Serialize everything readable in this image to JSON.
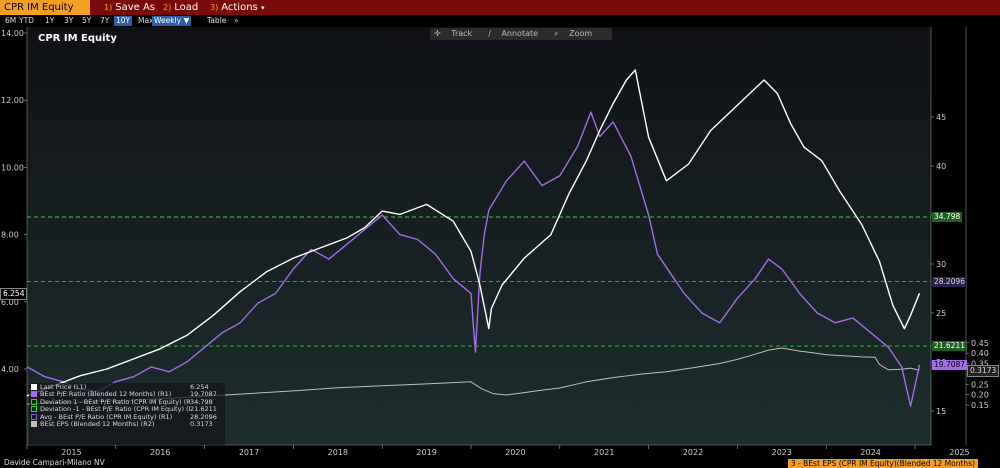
{
  "toolbar": {
    "ticker": "CPR IM Equity",
    "save_as": {
      "num": "1)",
      "label": "Save As"
    },
    "load": {
      "num": "2)",
      "label": "Load"
    },
    "actions": {
      "num": "3)",
      "label": "Actions"
    }
  },
  "ranges": [
    "6M",
    "YTD",
    "1Y",
    "3Y",
    "5Y",
    "7Y",
    "10Y",
    "Max"
  ],
  "active_range": "10Y",
  "frequency": "Weekly",
  "table_label": "Table",
  "more_label": "»",
  "chart_tools": {
    "track": "Track",
    "annotate": "Annotate",
    "zoom": "Zoom"
  },
  "footer": {
    "company": "Davide Campari-Milano NV",
    "right_label": "3 - BEst EPS (CPR IM Equity)(Blended 12 Months)"
  },
  "colors": {
    "price": "#ffffff",
    "pe": "#a46bea",
    "eps": "#bfbfbf",
    "dev": "#2fd62f",
    "avg": "#8a5bd6",
    "accent": "#f3a022",
    "header": "#7a0a0a"
  },
  "chart_data": {
    "type": "line",
    "title": "CPR IM Equity",
    "x_ticks": [
      "2015",
      "2016",
      "2017",
      "2018",
      "2019",
      "2020",
      "2021",
      "2022",
      "2023",
      "2024",
      "2025"
    ],
    "axes": {
      "left": {
        "range": [
          3,
          14
        ],
        "ticks": [
          "4.00",
          "6.00",
          "8.00",
          "10.00",
          "12.00",
          "14.00"
        ]
      },
      "r1": {
        "range": [
          13,
          47
        ],
        "ticks": [
          "15",
          "20",
          "25",
          "30",
          "35",
          "40",
          "45"
        ]
      },
      "r2": {
        "range": [
          0.125,
          0.45
        ],
        "ticks": [
          "0.15",
          "0.20",
          "0.25",
          "0.30",
          "0.35",
          "0.40",
          "0.45"
        ]
      }
    },
    "series": [
      {
        "name": "Last Price (L1)",
        "value": "6.254",
        "axis": "left",
        "x": [
          2015.0,
          2015.3,
          2015.6,
          2015.9,
          2016.2,
          2016.5,
          2016.8,
          2017.1,
          2017.4,
          2017.7,
          2018.0,
          2018.3,
          2018.6,
          2018.8,
          2019.0,
          2019.2,
          2019.5,
          2019.8,
          2020.0,
          2020.1,
          2020.2,
          2020.23,
          2020.35,
          2020.6,
          2020.9,
          2021.1,
          2021.3,
          2021.45,
          2021.6,
          2021.75,
          2021.85,
          2022.0,
          2022.2,
          2022.45,
          2022.7,
          2022.9,
          2023.1,
          2023.3,
          2023.45,
          2023.6,
          2023.75,
          2023.95,
          2024.15,
          2024.4,
          2024.6,
          2024.75,
          2024.88,
          2024.95,
          2025.05
        ],
        "y": [
          3.2,
          3.5,
          3.8,
          4.0,
          4.3,
          4.6,
          5.0,
          5.6,
          6.3,
          6.9,
          7.3,
          7.6,
          7.9,
          8.2,
          8.7,
          8.6,
          8.9,
          8.4,
          7.5,
          6.5,
          5.2,
          5.8,
          6.5,
          7.3,
          8.0,
          9.2,
          10.2,
          11.1,
          11.9,
          12.6,
          12.9,
          10.9,
          9.6,
          10.1,
          11.1,
          11.6,
          12.1,
          12.6,
          12.2,
          11.3,
          10.6,
          10.2,
          9.3,
          8.3,
          7.2,
          5.9,
          5.2,
          5.6,
          6.254
        ]
      },
      {
        "name": "BEst P/E Ratio (Blended 12 Months) (R1)",
        "value": "19.7087",
        "axis": "r1",
        "x": [
          2015.0,
          2015.2,
          2015.4,
          2015.6,
          2015.8,
          2016.0,
          2016.2,
          2016.4,
          2016.6,
          2016.8,
          2017.0,
          2017.2,
          2017.4,
          2017.6,
          2017.8,
          2018.0,
          2018.2,
          2018.4,
          2018.6,
          2018.8,
          2019.0,
          2019.2,
          2019.4,
          2019.6,
          2019.8,
          2020.0,
          2020.05,
          2020.1,
          2020.15,
          2020.2,
          2020.4,
          2020.6,
          2020.8,
          2021.0,
          2021.2,
          2021.35,
          2021.45,
          2021.6,
          2021.8,
          2022.0,
          2022.1,
          2022.25,
          2022.4,
          2022.6,
          2022.8,
          2023.0,
          2023.2,
          2023.35,
          2023.5,
          2023.7,
          2023.9,
          2024.1,
          2024.3,
          2024.5,
          2024.7,
          2024.85,
          2024.95,
          2025.05
        ],
        "y": [
          19.5,
          18.5,
          18.0,
          17.2,
          17.0,
          18.0,
          18.5,
          19.5,
          19.0,
          20.0,
          21.5,
          23.0,
          24.0,
          26.0,
          27.0,
          29.5,
          31.5,
          30.5,
          32.0,
          33.5,
          35.0,
          33.0,
          32.5,
          31.0,
          28.5,
          27.0,
          21.0,
          29.0,
          33.0,
          35.5,
          38.5,
          40.5,
          38.0,
          39.0,
          42.0,
          45.5,
          43.0,
          44.5,
          41.0,
          35.0,
          31.0,
          29.0,
          27.0,
          25.0,
          24.0,
          26.5,
          28.5,
          30.5,
          29.5,
          27.0,
          25.0,
          24.0,
          24.5,
          23.0,
          21.5,
          19.5,
          15.5,
          19.7087
        ]
      },
      {
        "name": "Deviation 1 - BEst P/E Ratio (CPR IM Equity) (R1)",
        "value": "34.798",
        "axis": "r1",
        "x": [
          2015.0,
          2025.05
        ],
        "y": [
          34.798,
          34.798
        ]
      },
      {
        "name": "Deviation -1 - BEst P/E Ratio (CPR IM Equity) (R1)",
        "value": "21.6211",
        "axis": "r1",
        "x": [
          2015.0,
          2025.05
        ],
        "y": [
          21.6211,
          21.6211
        ]
      },
      {
        "name": "Avg - BEst P/E Ratio (CPR IM Equity) (R1)",
        "value": "28.2096",
        "axis": "r1",
        "x": [
          2015.0,
          2025.05
        ],
        "y": [
          28.2096,
          28.2096
        ]
      },
      {
        "name": "BEst EPS (Blended 12 Months) (R2)",
        "value": "0.3173",
        "axis": "r2",
        "x": [
          2015.0,
          2015.5,
          2016.0,
          2016.5,
          2017.0,
          2017.5,
          2018.0,
          2018.5,
          2019.0,
          2019.5,
          2020.0,
          2020.12,
          2020.25,
          2020.4,
          2020.6,
          2020.8,
          2021.0,
          2021.3,
          2021.6,
          2021.9,
          2022.2,
          2022.5,
          2022.8,
          2023.0,
          2023.2,
          2023.35,
          2023.5,
          2023.7,
          2023.85,
          2024.0,
          2024.2,
          2024.4,
          2024.55,
          2024.6,
          2024.7,
          2024.85,
          2024.95,
          2025.05
        ],
        "y": [
          0.155,
          0.163,
          0.17,
          0.18,
          0.192,
          0.205,
          0.218,
          0.233,
          0.243,
          0.252,
          0.262,
          0.228,
          0.205,
          0.198,
          0.21,
          0.222,
          0.232,
          0.262,
          0.282,
          0.298,
          0.31,
          0.33,
          0.35,
          0.37,
          0.395,
          0.415,
          0.425,
          0.41,
          0.402,
          0.392,
          0.388,
          0.382,
          0.38,
          0.345,
          0.32,
          0.322,
          0.328,
          0.3173
        ]
      }
    ]
  }
}
